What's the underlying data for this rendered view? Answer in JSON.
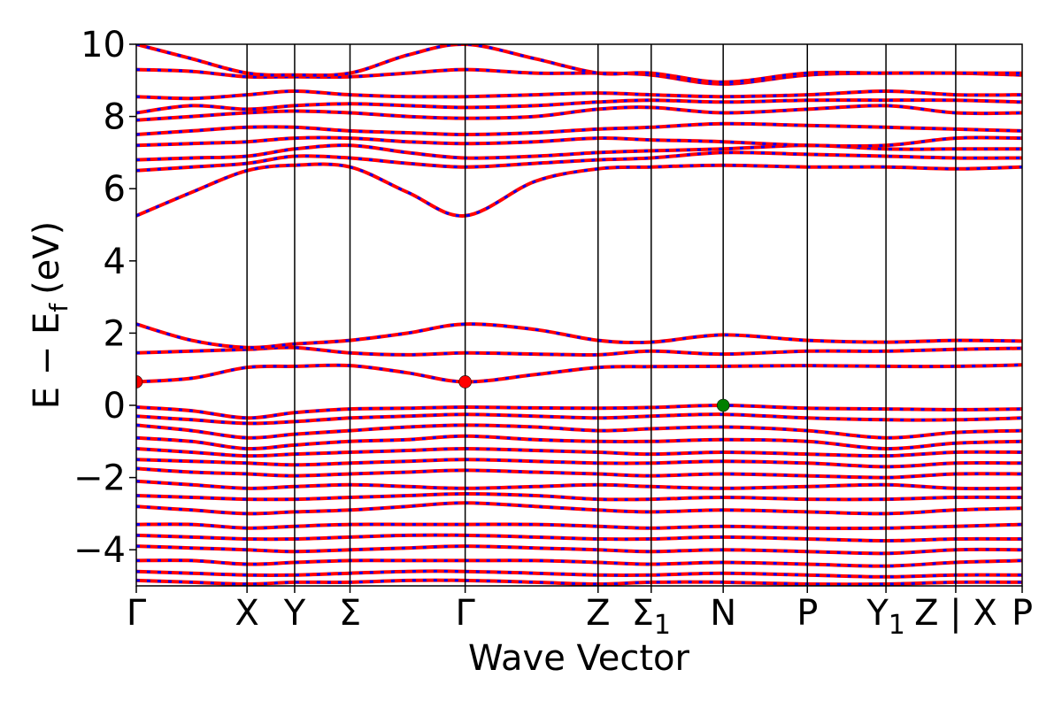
{
  "chart_data": {
    "type": "line",
    "xlabel": "Wave Vector",
    "ylabel": "E − E",
    "ylabel_subscript": "f",
    "ylabel_unit": "(eV)",
    "ylim": [
      -5,
      10
    ],
    "yticks": [
      -4,
      -2,
      0,
      2,
      4,
      6,
      8,
      10
    ],
    "ytick_labels": [
      "−4",
      "−2",
      "0",
      "2",
      "4",
      "6",
      "8",
      "10"
    ],
    "kpoints": [
      {
        "label": "Γ",
        "sub": "",
        "x": 0.0
      },
      {
        "label": "X",
        "sub": "",
        "x": 1.0
      },
      {
        "label": "Y",
        "sub": "",
        "x": 1.43
      },
      {
        "label": "Σ",
        "sub": "",
        "x": 1.93
      },
      {
        "label": "Γ",
        "sub": "",
        "x": 2.97
      },
      {
        "label": "Z",
        "sub": "",
        "x": 4.17
      },
      {
        "label": "Σ",
        "sub": "1",
        "x": 4.65
      },
      {
        "label": "N",
        "sub": "",
        "x": 5.3
      },
      {
        "label": "P",
        "sub": "",
        "x": 6.06
      },
      {
        "label": "Y",
        "sub": "1",
        "x": 6.77
      },
      {
        "label": "Z | X",
        "sub": "",
        "x": 7.4
      },
      {
        "label": "P",
        "sub": "",
        "x": 8.0
      }
    ],
    "colors": {
      "spin_up": "#ff0000",
      "spin_down": "#0000ff",
      "cbm_marker": "#ff0000",
      "vbm_marker": "#008000"
    },
    "markers": [
      {
        "name": "CBM",
        "x": 0.0,
        "y": 0.65,
        "color": "#ff0000"
      },
      {
        "name": "CBM",
        "x": 2.97,
        "y": 0.65,
        "color": "#ff0000"
      },
      {
        "name": "VBM",
        "x": 5.3,
        "y": 0.0,
        "color": "#008000"
      }
    ],
    "bands": [
      {
        "name": "c1",
        "x": [
          0,
          0.5,
          1.0,
          1.43,
          1.93,
          2.45,
          2.97,
          3.6,
          4.17,
          4.65,
          5.3,
          6.06,
          6.77,
          7.4,
          8.0
        ],
        "y": [
          0.65,
          0.75,
          1.05,
          1.08,
          1.1,
          0.9,
          0.65,
          0.85,
          1.05,
          1.07,
          1.08,
          1.1,
          1.08,
          1.08,
          1.12
        ]
      },
      {
        "name": "c2",
        "x": [
          0,
          0.5,
          1.0,
          1.43,
          1.93,
          2.45,
          2.97,
          3.6,
          4.17,
          4.65,
          5.3,
          6.06,
          6.77,
          7.4,
          8.0
        ],
        "y": [
          1.45,
          1.5,
          1.55,
          1.6,
          1.45,
          1.4,
          1.45,
          1.42,
          1.4,
          1.5,
          1.42,
          1.5,
          1.5,
          1.55,
          1.58
        ]
      },
      {
        "name": "c3",
        "x": [
          0,
          0.5,
          1.0,
          1.43,
          1.93,
          2.45,
          2.97,
          3.6,
          4.17,
          4.65,
          5.3,
          6.06,
          6.77,
          7.4,
          8.0
        ],
        "y": [
          2.25,
          1.8,
          1.6,
          1.7,
          1.8,
          2.0,
          2.25,
          2.1,
          1.8,
          1.75,
          1.95,
          1.8,
          1.75,
          1.8,
          1.78
        ]
      },
      {
        "name": "c4",
        "x": [
          0,
          0.5,
          1.0,
          1.43,
          1.93,
          2.45,
          2.97,
          3.6,
          4.17,
          4.65,
          5.3,
          6.06,
          6.77,
          7.4,
          8.0
        ],
        "y": [
          5.25,
          5.9,
          6.5,
          6.65,
          6.6,
          5.9,
          5.25,
          6.2,
          6.55,
          6.6,
          6.65,
          6.6,
          6.6,
          6.55,
          6.6
        ]
      },
      {
        "name": "c5",
        "x": [
          0,
          0.5,
          1.0,
          1.43,
          1.93,
          2.45,
          2.97,
          3.6,
          4.17,
          4.65,
          5.3,
          6.06,
          6.77,
          7.4,
          8.0
        ],
        "y": [
          6.5,
          6.6,
          6.7,
          6.9,
          6.85,
          6.7,
          6.6,
          6.7,
          6.8,
          6.85,
          7.0,
          6.95,
          6.9,
          6.85,
          6.85
        ]
      },
      {
        "name": "c6",
        "x": [
          0,
          0.5,
          1.0,
          1.43,
          1.93,
          2.45,
          2.97,
          3.6,
          4.17,
          4.65,
          5.3,
          6.06,
          6.77,
          7.4,
          8.0
        ],
        "y": [
          6.8,
          6.85,
          6.9,
          7.1,
          7.2,
          7.0,
          6.85,
          6.9,
          7.0,
          7.05,
          7.1,
          7.2,
          7.1,
          7.1,
          7.1
        ]
      },
      {
        "name": "c7",
        "x": [
          0,
          0.5,
          1.0,
          1.43,
          1.93,
          2.45,
          2.97,
          3.6,
          4.17,
          4.65,
          5.3,
          6.06,
          6.77,
          7.4,
          8.0
        ],
        "y": [
          7.2,
          7.25,
          7.3,
          7.4,
          7.4,
          7.3,
          7.25,
          7.3,
          7.4,
          7.35,
          7.3,
          7.2,
          7.2,
          7.4,
          7.4
        ]
      },
      {
        "name": "c8",
        "x": [
          0,
          0.5,
          1.0,
          1.43,
          1.93,
          2.45,
          2.97,
          3.6,
          4.17,
          4.65,
          5.3,
          6.06,
          6.77,
          7.4,
          8.0
        ],
        "y": [
          7.5,
          7.6,
          7.7,
          7.7,
          7.6,
          7.55,
          7.5,
          7.55,
          7.65,
          7.7,
          7.8,
          7.75,
          7.7,
          7.65,
          7.6
        ]
      },
      {
        "name": "c9",
        "x": [
          0,
          0.5,
          1.0,
          1.43,
          1.93,
          2.45,
          2.97,
          3.6,
          4.17,
          4.65,
          5.3,
          6.06,
          6.77,
          7.4,
          8.0
        ],
        "y": [
          7.9,
          8.0,
          8.1,
          8.15,
          8.1,
          8.0,
          7.95,
          8.0,
          8.2,
          8.25,
          8.1,
          8.2,
          8.3,
          8.1,
          8.1
        ]
      },
      {
        "name": "c10",
        "x": [
          0,
          0.5,
          1.0,
          1.43,
          1.93,
          2.45,
          2.97,
          3.6,
          4.17,
          4.65,
          5.3,
          6.06,
          6.77,
          7.4,
          8.0
        ],
        "y": [
          8.1,
          8.3,
          8.2,
          8.3,
          8.35,
          8.3,
          8.25,
          8.3,
          8.4,
          8.45,
          8.4,
          8.45,
          8.45,
          8.45,
          8.4
        ]
      },
      {
        "name": "c11",
        "x": [
          0,
          0.5,
          1.0,
          1.43,
          1.93,
          2.45,
          2.97,
          3.6,
          4.17,
          4.65,
          5.3,
          6.06,
          6.77,
          7.4,
          8.0
        ],
        "y": [
          8.55,
          8.5,
          8.6,
          8.7,
          8.6,
          8.55,
          8.55,
          8.6,
          8.65,
          8.6,
          8.55,
          8.6,
          8.7,
          8.6,
          8.6
        ]
      },
      {
        "name": "c12",
        "x": [
          0,
          0.5,
          1.0,
          1.43,
          1.93,
          2.45,
          2.97,
          3.6,
          4.17,
          4.65,
          5.3,
          6.06,
          6.77,
          7.4,
          8.0
        ],
        "y": [
          9.3,
          9.25,
          9.1,
          9.1,
          9.1,
          9.2,
          9.3,
          9.2,
          9.2,
          9.15,
          8.9,
          9.15,
          9.2,
          9.2,
          9.15
        ]
      },
      {
        "name": "c13",
        "x": [
          0,
          0.5,
          1.0,
          1.43,
          1.93,
          2.45,
          2.97,
          3.6,
          4.17,
          4.65,
          5.3,
          6.06,
          6.77,
          7.4,
          8.0
        ],
        "y": [
          10.0,
          9.6,
          9.2,
          9.15,
          9.2,
          9.7,
          10.0,
          9.6,
          9.2,
          9.2,
          8.95,
          9.2,
          9.2,
          9.2,
          9.2
        ]
      },
      {
        "name": "v1",
        "x": [
          0,
          0.5,
          1.0,
          1.43,
          1.93,
          2.45,
          2.97,
          3.6,
          4.17,
          4.65,
          5.3,
          6.06,
          6.77,
          7.4,
          8.0
        ],
        "y": [
          -0.05,
          -0.15,
          -0.35,
          -0.2,
          -0.1,
          -0.08,
          -0.05,
          -0.07,
          -0.08,
          -0.06,
          0.0,
          -0.08,
          -0.1,
          -0.12,
          -0.1
        ]
      },
      {
        "name": "v2",
        "x": [
          0,
          0.5,
          1.0,
          1.43,
          1.93,
          2.45,
          2.97,
          3.6,
          4.17,
          4.65,
          5.3,
          6.06,
          6.77,
          7.4,
          8.0
        ],
        "y": [
          -0.3,
          -0.4,
          -0.5,
          -0.45,
          -0.35,
          -0.3,
          -0.25,
          -0.3,
          -0.35,
          -0.3,
          -0.25,
          -0.35,
          -0.4,
          -0.4,
          -0.35
        ]
      },
      {
        "name": "v3",
        "x": [
          0,
          0.5,
          1.0,
          1.43,
          1.93,
          2.45,
          2.97,
          3.6,
          4.17,
          4.65,
          5.3,
          6.06,
          6.77,
          7.4,
          8.0
        ],
        "y": [
          -0.55,
          -0.7,
          -0.9,
          -0.8,
          -0.7,
          -0.6,
          -0.55,
          -0.6,
          -0.7,
          -0.65,
          -0.6,
          -0.7,
          -0.9,
          -0.75,
          -0.7
        ]
      },
      {
        "name": "v4",
        "x": [
          0,
          0.5,
          1.0,
          1.43,
          1.93,
          2.45,
          2.97,
          3.6,
          4.17,
          4.65,
          5.3,
          6.06,
          6.77,
          7.4,
          8.0
        ],
        "y": [
          -0.9,
          -1.0,
          -1.2,
          -1.1,
          -1.0,
          -0.95,
          -0.85,
          -0.95,
          -1.0,
          -1.0,
          -0.95,
          -1.0,
          -1.2,
          -1.05,
          -1.0
        ]
      },
      {
        "name": "v5",
        "x": [
          0,
          0.5,
          1.0,
          1.43,
          1.93,
          2.45,
          2.97,
          3.6,
          4.17,
          4.65,
          5.3,
          6.06,
          6.77,
          7.4,
          8.0
        ],
        "y": [
          -1.2,
          -1.3,
          -1.4,
          -1.35,
          -1.3,
          -1.25,
          -1.2,
          -1.25,
          -1.3,
          -1.35,
          -1.3,
          -1.35,
          -1.4,
          -1.3,
          -1.3
        ]
      },
      {
        "name": "v6",
        "x": [
          0,
          0.5,
          1.0,
          1.43,
          1.93,
          2.45,
          2.97,
          3.6,
          4.17,
          4.65,
          5.3,
          6.06,
          6.77,
          7.4,
          8.0
        ],
        "y": [
          -1.5,
          -1.55,
          -1.6,
          -1.65,
          -1.6,
          -1.55,
          -1.5,
          -1.55,
          -1.6,
          -1.6,
          -1.55,
          -1.6,
          -1.7,
          -1.6,
          -1.6
        ]
      },
      {
        "name": "v7",
        "x": [
          0,
          0.5,
          1.0,
          1.43,
          1.93,
          2.45,
          2.97,
          3.6,
          4.17,
          4.65,
          5.3,
          6.06,
          6.77,
          7.4,
          8.0
        ],
        "y": [
          -1.75,
          -1.85,
          -1.9,
          -1.95,
          -1.9,
          -1.85,
          -1.8,
          -1.85,
          -1.9,
          -1.95,
          -1.9,
          -1.95,
          -2.0,
          -1.9,
          -1.9
        ]
      },
      {
        "name": "v8",
        "x": [
          0,
          0.5,
          1.0,
          1.43,
          1.93,
          2.45,
          2.97,
          3.6,
          4.17,
          4.65,
          5.3,
          6.06,
          6.77,
          7.4,
          8.0
        ],
        "y": [
          -2.1,
          -2.2,
          -2.3,
          -2.25,
          -2.2,
          -2.25,
          -2.3,
          -2.25,
          -2.2,
          -2.25,
          -2.3,
          -2.25,
          -2.2,
          -2.3,
          -2.3
        ]
      },
      {
        "name": "v9",
        "x": [
          0,
          0.5,
          1.0,
          1.43,
          1.93,
          2.45,
          2.97,
          3.6,
          4.17,
          4.65,
          5.3,
          6.06,
          6.77,
          7.4,
          8.0
        ],
        "y": [
          -2.5,
          -2.55,
          -2.6,
          -2.6,
          -2.55,
          -2.5,
          -2.45,
          -2.5,
          -2.6,
          -2.6,
          -2.55,
          -2.6,
          -2.6,
          -2.55,
          -2.55
        ]
      },
      {
        "name": "v10",
        "x": [
          0,
          0.5,
          1.0,
          1.43,
          1.93,
          2.45,
          2.97,
          3.6,
          4.17,
          4.65,
          5.3,
          6.06,
          6.77,
          7.4,
          8.0
        ],
        "y": [
          -2.8,
          -2.9,
          -3.0,
          -2.95,
          -2.9,
          -2.8,
          -2.7,
          -2.8,
          -2.9,
          -2.95,
          -2.9,
          -2.95,
          -3.0,
          -2.9,
          -2.85
        ]
      },
      {
        "name": "v11",
        "x": [
          0,
          0.5,
          1.0,
          1.43,
          1.93,
          2.45,
          2.97,
          3.6,
          4.17,
          4.65,
          5.3,
          6.06,
          6.77,
          7.4,
          8.0
        ],
        "y": [
          -3.3,
          -3.3,
          -3.4,
          -3.35,
          -3.3,
          -3.3,
          -3.3,
          -3.3,
          -3.35,
          -3.4,
          -3.35,
          -3.4,
          -3.4,
          -3.35,
          -3.3
        ]
      },
      {
        "name": "v12",
        "x": [
          0,
          0.5,
          1.0,
          1.43,
          1.93,
          2.45,
          2.97,
          3.6,
          4.17,
          4.65,
          5.3,
          6.06,
          6.77,
          7.4,
          8.0
        ],
        "y": [
          -3.6,
          -3.65,
          -3.7,
          -3.7,
          -3.65,
          -3.6,
          -3.6,
          -3.65,
          -3.7,
          -3.7,
          -3.65,
          -3.7,
          -3.75,
          -3.7,
          -3.7
        ]
      },
      {
        "name": "v13",
        "x": [
          0,
          0.5,
          1.0,
          1.43,
          1.93,
          2.45,
          2.97,
          3.6,
          4.17,
          4.65,
          5.3,
          6.06,
          6.77,
          7.4,
          8.0
        ],
        "y": [
          -3.9,
          -3.95,
          -4.0,
          -4.05,
          -4.0,
          -3.95,
          -3.9,
          -3.95,
          -4.0,
          -4.05,
          -4.0,
          -4.05,
          -4.1,
          -4.0,
          -4.0
        ]
      },
      {
        "name": "v14",
        "x": [
          0,
          0.5,
          1.0,
          1.43,
          1.93,
          2.45,
          2.97,
          3.6,
          4.17,
          4.65,
          5.3,
          6.06,
          6.77,
          7.4,
          8.0
        ],
        "y": [
          -4.3,
          -4.3,
          -4.4,
          -4.35,
          -4.3,
          -4.3,
          -4.3,
          -4.3,
          -4.35,
          -4.4,
          -4.35,
          -4.4,
          -4.45,
          -4.35,
          -4.3
        ]
      },
      {
        "name": "v15",
        "x": [
          0,
          0.5,
          1.0,
          1.43,
          1.93,
          2.45,
          2.97,
          3.6,
          4.17,
          4.65,
          5.3,
          6.06,
          6.77,
          7.4,
          8.0
        ],
        "y": [
          -4.6,
          -4.65,
          -4.7,
          -4.7,
          -4.65,
          -4.6,
          -4.6,
          -4.65,
          -4.7,
          -4.7,
          -4.65,
          -4.7,
          -4.75,
          -4.7,
          -4.7
        ]
      },
      {
        "name": "v16",
        "x": [
          0,
          0.5,
          1.0,
          1.43,
          1.93,
          2.45,
          2.97,
          3.6,
          4.17,
          4.65,
          5.3,
          6.06,
          6.77,
          7.4,
          8.0
        ],
        "y": [
          -4.85,
          -4.9,
          -4.95,
          -4.9,
          -4.9,
          -4.85,
          -4.85,
          -4.9,
          -4.95,
          -4.9,
          -4.9,
          -4.95,
          -4.95,
          -4.9,
          -4.9
        ]
      }
    ]
  }
}
